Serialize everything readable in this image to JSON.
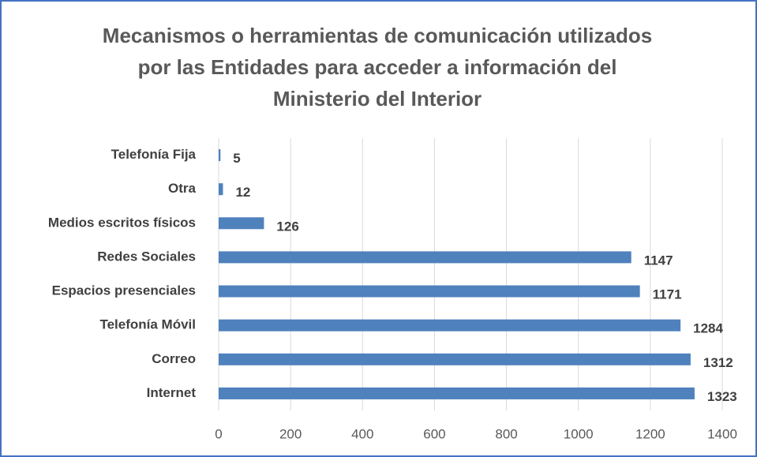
{
  "chart_data": {
    "type": "bar",
    "orientation": "horizontal",
    "title": [
      "Mecanismos o herramientas de comunicación utilizados",
      "por las Entidades para acceder a información del",
      "Ministerio del Interior"
    ],
    "categories": [
      "Telefonía Fija",
      "Otra",
      "Medios escritos físicos",
      "Redes Sociales",
      "Espacios presenciales",
      "Telefonía Móvil",
      "Correo",
      "Internet"
    ],
    "values": [
      5,
      12,
      126,
      1147,
      1171,
      1284,
      1312,
      1323
    ],
    "color": "#4f81bd",
    "xlim": [
      0,
      1400
    ],
    "xticks": [
      0,
      200,
      400,
      600,
      800,
      1000,
      1200,
      1400
    ],
    "grid": true
  }
}
